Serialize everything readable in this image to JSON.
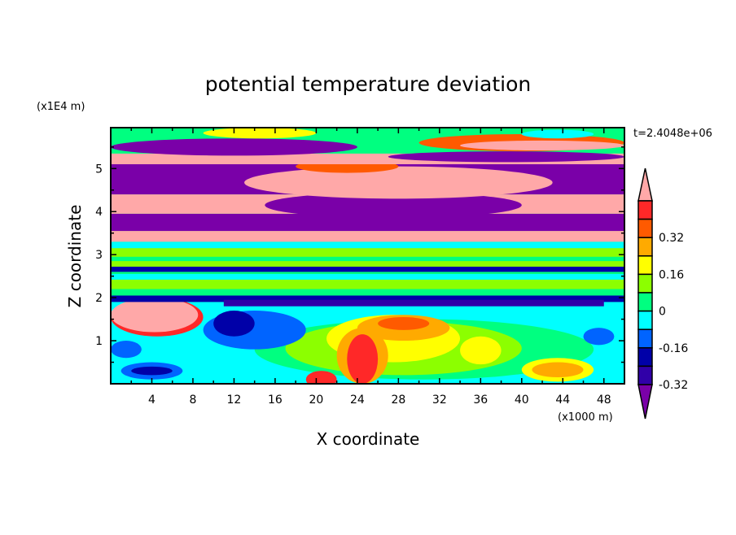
{
  "chart_data": {
    "type": "heatmap",
    "subtype": "filled-contour",
    "title": "potential temperature deviation",
    "xlabel": "X coordinate",
    "ylabel": "Z coordinate",
    "x_units_label": "(x1000 m)",
    "y_units_label": "(x1E4 m)",
    "time_label": "t=2.4048e+06",
    "xlim": [
      0,
      50
    ],
    "ylim": [
      0,
      5.95
    ],
    "x_ticks": [
      "4",
      "8",
      "12",
      "16",
      "20",
      "24",
      "28",
      "32",
      "36",
      "40",
      "44",
      "48"
    ],
    "x_tick_values": [
      4,
      8,
      12,
      16,
      20,
      24,
      28,
      32,
      36,
      40,
      44,
      48
    ],
    "y_ticks": [
      "1",
      "2",
      "3",
      "4",
      "5"
    ],
    "y_tick_values": [
      1,
      2,
      3,
      4,
      5
    ],
    "colorbar": {
      "levels": [
        -0.4,
        -0.32,
        -0.24,
        -0.16,
        -0.08,
        0,
        0.08,
        0.16,
        0.24,
        0.32,
        0.4
      ],
      "labels": [
        "0.32",
        "0.16",
        "0",
        "-0.16",
        "-0.32"
      ],
      "label_values": [
        0.32,
        0.16,
        0,
        -0.16,
        -0.32
      ],
      "colors": [
        "#7a00a8",
        "#3000a8",
        "#0000a8",
        "#0064ff",
        "#00ffff",
        "#00ff80",
        "#8cff00",
        "#ffff00",
        "#ffaa00",
        "#ff5a00",
        "#ff2828",
        "#ffa8a8"
      ],
      "extend": "both"
    },
    "regions_approx": [
      {
        "shape": "rect",
        "x": [
          0,
          50
        ],
        "z": [
          0,
          1.9
        ],
        "c": 4
      },
      {
        "shape": "ellipse",
        "x": [
          14,
          47
        ],
        "z": [
          0.1,
          1.5
        ],
        "c": 5
      },
      {
        "shape": "ellipse",
        "x": [
          17,
          40
        ],
        "z": [
          0.2,
          1.45
        ],
        "c": 6
      },
      {
        "shape": "ellipse",
        "x": [
          21,
          34
        ],
        "z": [
          0.5,
          1.6
        ],
        "c": 7
      },
      {
        "shape": "ellipse",
        "x": [
          24,
          33
        ],
        "z": [
          1.0,
          1.6
        ],
        "c": 8
      },
      {
        "shape": "ellipse",
        "x": [
          26,
          31
        ],
        "z": [
          1.25,
          1.55
        ],
        "c": 9
      },
      {
        "shape": "ellipse",
        "x": [
          22,
          27
        ],
        "z": [
          0,
          1.3
        ],
        "c": 8
      },
      {
        "shape": "ellipse",
        "x": [
          23,
          26
        ],
        "z": [
          0,
          1.15
        ],
        "c": 10
      },
      {
        "shape": "ellipse",
        "x": [
          19,
          22
        ],
        "z": [
          -0.1,
          0.3
        ],
        "c": 10
      },
      {
        "shape": "ellipse",
        "x": [
          34,
          38
        ],
        "z": [
          0.45,
          1.1
        ],
        "c": 7
      },
      {
        "shape": "ellipse",
        "x": [
          40,
          47
        ],
        "z": [
          0.05,
          0.6
        ],
        "c": 7
      },
      {
        "shape": "ellipse",
        "x": [
          41,
          46
        ],
        "z": [
          0.15,
          0.5
        ],
        "c": 8
      },
      {
        "shape": "ellipse",
        "x": [
          1,
          7
        ],
        "z": [
          0.1,
          0.5
        ],
        "c": 3
      },
      {
        "shape": "ellipse",
        "x": [
          2,
          6
        ],
        "z": [
          0.2,
          0.4
        ],
        "c": 2
      },
      {
        "shape": "ellipse",
        "x": [
          0,
          3
        ],
        "z": [
          0.6,
          1.0
        ],
        "c": 3
      },
      {
        "shape": "ellipse",
        "x": [
          9,
          19
        ],
        "z": [
          0.8,
          1.7
        ],
        "c": 3
      },
      {
        "shape": "ellipse",
        "x": [
          10,
          14
        ],
        "z": [
          1.1,
          1.7
        ],
        "c": 2
      },
      {
        "shape": "ellipse",
        "x": [
          46,
          49
        ],
        "z": [
          0.9,
          1.3
        ],
        "c": 3
      },
      {
        "shape": "ellipse",
        "x": [
          0,
          9
        ],
        "z": [
          1.1,
          2.0
        ],
        "c": 10
      },
      {
        "shape": "ellipse",
        "x": [
          0,
          8.5
        ],
        "z": [
          1.2,
          2.0
        ],
        "c": 11
      },
      {
        "shape": "rect",
        "x": [
          0,
          50
        ],
        "z": [
          1.9,
          2.05
        ],
        "c": 2
      },
      {
        "shape": "rect",
        "x": [
          11,
          48
        ],
        "z": [
          1.8,
          1.95
        ],
        "c": 1
      },
      {
        "shape": "rect",
        "x": [
          0,
          50
        ],
        "z": [
          2.05,
          2.6
        ],
        "c": 5
      },
      {
        "shape": "rect",
        "x": [
          0,
          50
        ],
        "z": [
          2.2,
          2.42
        ],
        "c": 6
      },
      {
        "shape": "rect",
        "x": [
          0,
          50
        ],
        "z": [
          2.42,
          2.55
        ],
        "c": 4
      },
      {
        "shape": "rect",
        "x": [
          0,
          50
        ],
        "z": [
          2.6,
          2.72
        ],
        "c": 2
      },
      {
        "shape": "rect",
        "x": [
          0,
          50
        ],
        "z": [
          2.72,
          3.3
        ],
        "c": 6
      },
      {
        "shape": "rect",
        "x": [
          0,
          50
        ],
        "z": [
          2.85,
          2.95
        ],
        "c": 5
      },
      {
        "shape": "rect",
        "x": [
          0,
          50
        ],
        "z": [
          3.15,
          3.3
        ],
        "c": 4
      },
      {
        "shape": "rect",
        "x": [
          0,
          50
        ],
        "z": [
          3.3,
          3.55
        ],
        "c": 11
      },
      {
        "shape": "rect",
        "x": [
          0,
          50
        ],
        "z": [
          3.55,
          3.95
        ],
        "c": 0
      },
      {
        "shape": "rect",
        "x": [
          0,
          50
        ],
        "z": [
          3.95,
          4.4
        ],
        "c": 11
      },
      {
        "shape": "ellipse",
        "x": [
          15,
          40
        ],
        "z": [
          3.85,
          4.45
        ],
        "c": 0
      },
      {
        "shape": "rect",
        "x": [
          0,
          50
        ],
        "z": [
          4.4,
          5.1
        ],
        "c": 0
      },
      {
        "shape": "ellipse",
        "x": [
          13,
          43
        ],
        "z": [
          4.3,
          5.05
        ],
        "c": 11
      },
      {
        "shape": "ellipse",
        "x": [
          18,
          28
        ],
        "z": [
          4.9,
          5.2
        ],
        "c": 9
      },
      {
        "shape": "rect",
        "x": [
          0,
          50
        ],
        "z": [
          5.1,
          5.35
        ],
        "c": 11
      },
      {
        "shape": "rect",
        "x": [
          0,
          50
        ],
        "z": [
          5.35,
          5.95
        ],
        "c": 5
      },
      {
        "shape": "ellipse",
        "x": [
          0,
          24
        ],
        "z": [
          5.3,
          5.7
        ],
        "c": 0
      },
      {
        "shape": "ellipse",
        "x": [
          27,
          50
        ],
        "z": [
          5.15,
          5.4
        ],
        "c": 0
      },
      {
        "shape": "ellipse",
        "x": [
          30,
          50
        ],
        "z": [
          5.4,
          5.8
        ],
        "c": 9
      },
      {
        "shape": "ellipse",
        "x": [
          34,
          50
        ],
        "z": [
          5.42,
          5.65
        ],
        "c": 11
      },
      {
        "shape": "ellipse",
        "x": [
          9,
          20
        ],
        "z": [
          5.7,
          5.95
        ],
        "c": 7
      },
      {
        "shape": "ellipse",
        "x": [
          40,
          47
        ],
        "z": [
          5.7,
          5.9
        ],
        "c": 4
      }
    ]
  }
}
